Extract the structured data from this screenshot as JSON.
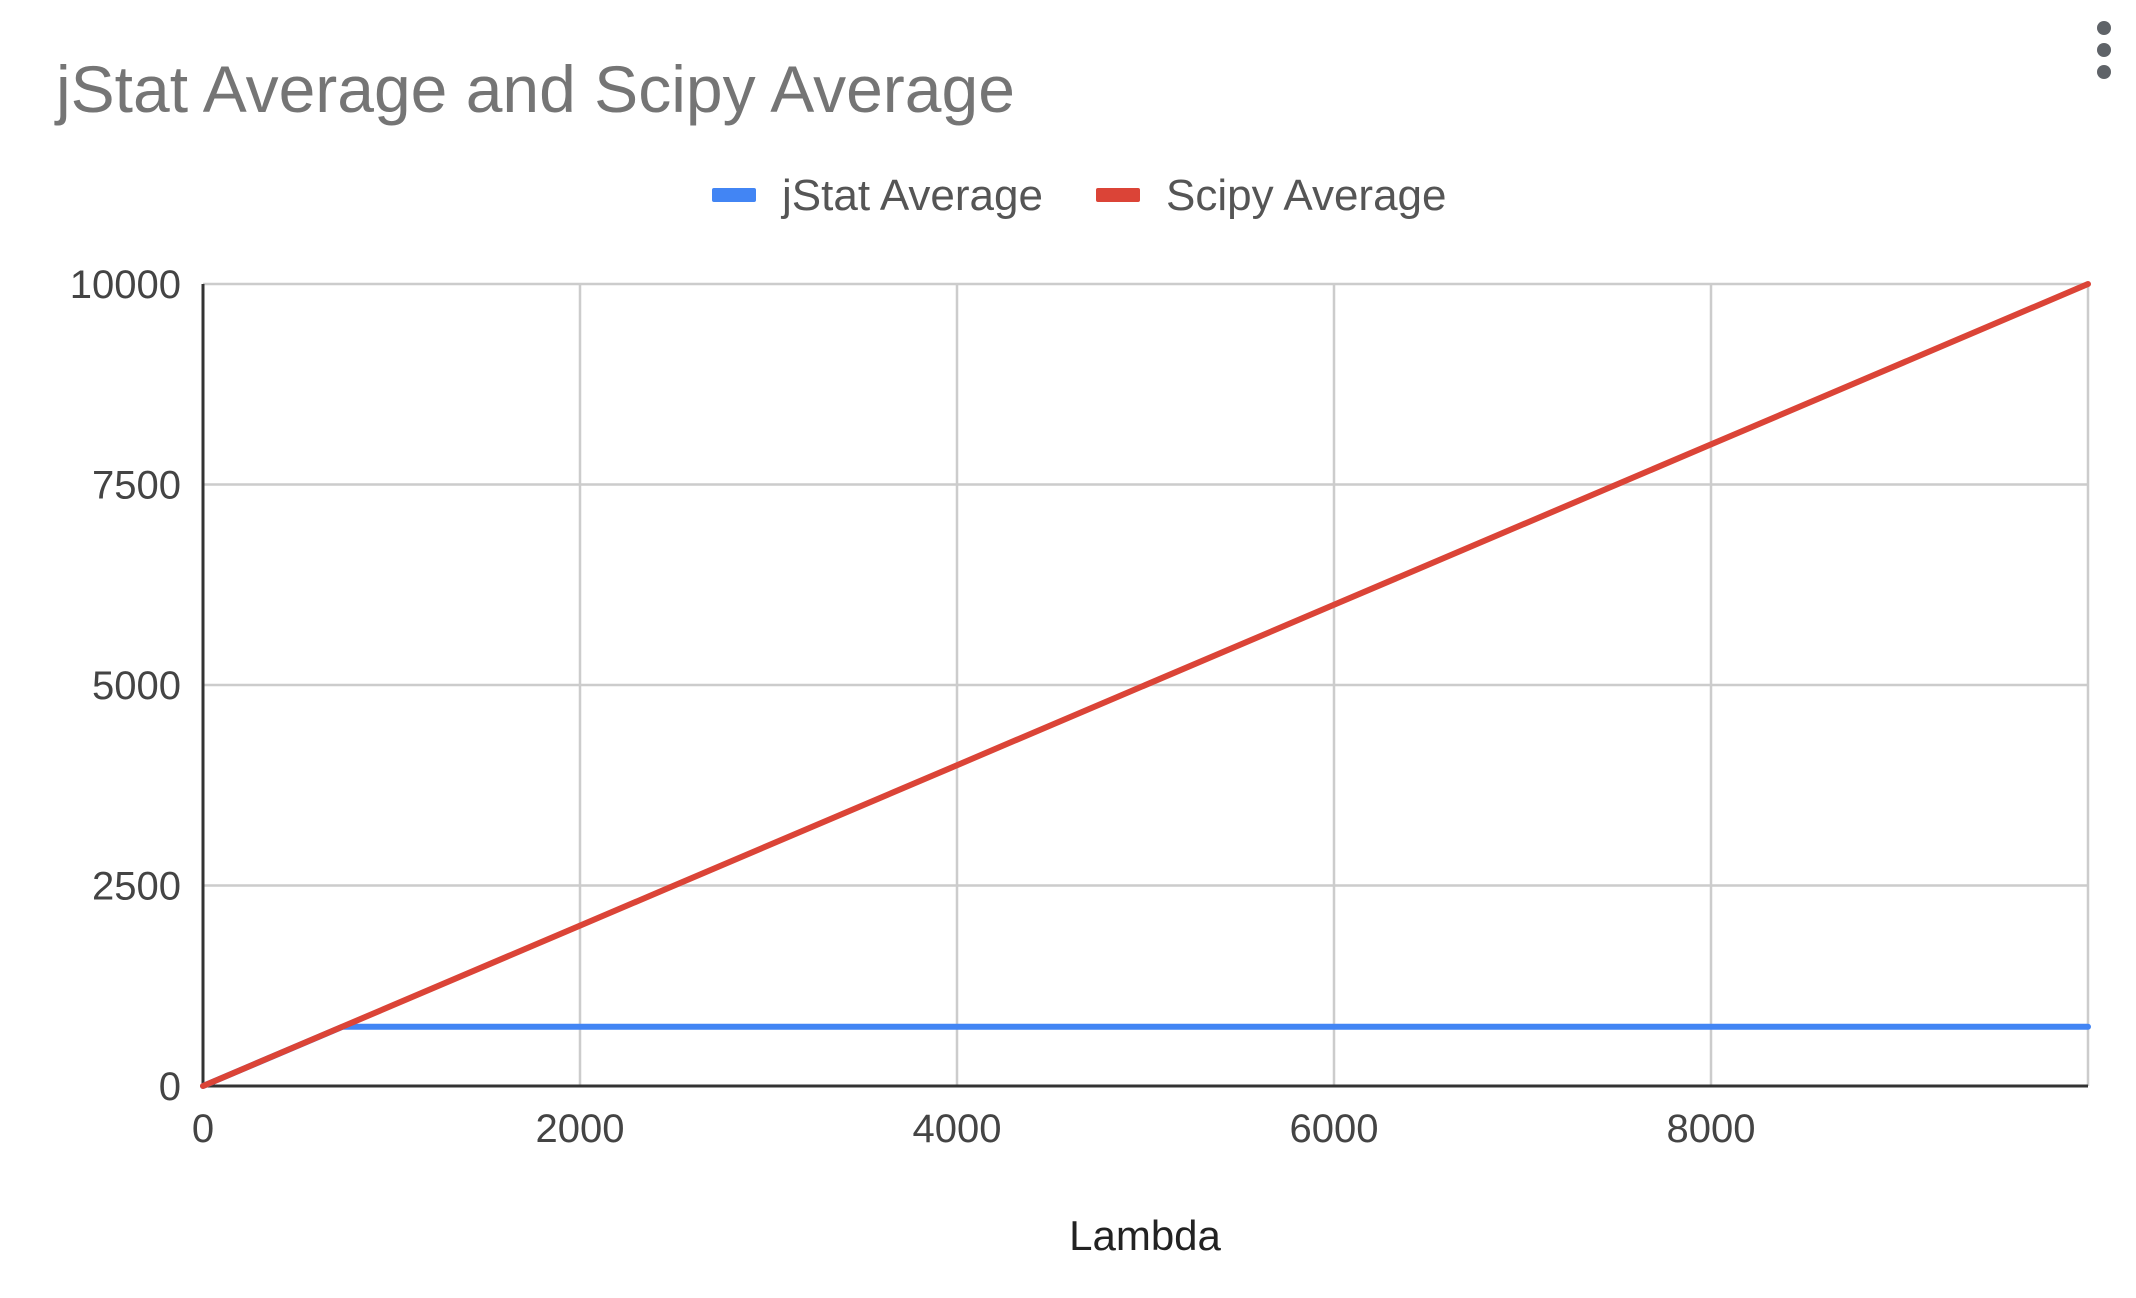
{
  "chart_data": {
    "type": "line",
    "title": "jStat Average and Scipy Average",
    "xlabel": "Lambda",
    "ylabel": "",
    "xlim": [
      0,
      10000
    ],
    "ylim": [
      0,
      10000
    ],
    "x_ticks": [
      0,
      2000,
      4000,
      6000,
      8000
    ],
    "x_tick_labels": [
      "0",
      "2000",
      "4000",
      "6000",
      "8000"
    ],
    "y_ticks": [
      0,
      2500,
      5000,
      7500,
      10000
    ],
    "y_tick_labels": [
      "0",
      "2500",
      "5000",
      "7500",
      "10000"
    ],
    "grid": true,
    "legend_position": "top",
    "series": [
      {
        "name": "jStat Average",
        "color": "#4285f4",
        "x": [
          0,
          740,
          2000,
          4000,
          6000,
          8000,
          10000
        ],
        "y": [
          0,
          740,
          740,
          740,
          740,
          740,
          740
        ]
      },
      {
        "name": "Scipy Average",
        "color": "#db4437",
        "x": [
          0,
          2000,
          4000,
          6000,
          8000,
          10000
        ],
        "y": [
          0,
          2000,
          4000,
          6000,
          8000,
          10000
        ]
      }
    ]
  },
  "menu": {
    "icon": "more-vert-icon"
  }
}
